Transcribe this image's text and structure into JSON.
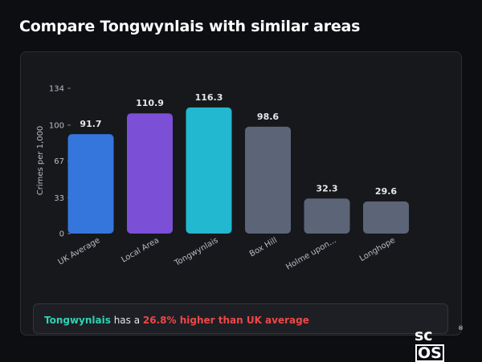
{
  "page": {
    "title": "Compare Tongwynlais with similar areas"
  },
  "summary": {
    "area": "Tongwynlais",
    "middle": " has a ",
    "difference": "26.8% higher than UK average"
  },
  "brand": {
    "prefix": "sc",
    "boxed": "OS",
    "registered": "®"
  },
  "chart_data": {
    "type": "bar",
    "title": "",
    "xlabel": "",
    "ylabel": "Crimes per 1,000",
    "yticks": [
      0,
      33,
      67,
      100,
      134
    ],
    "ylim": [
      0,
      134
    ],
    "categories": [
      "UK Average",
      "Local Area",
      "Tongwynlais",
      "Box Hill",
      "Holme upon...",
      "Longhope"
    ],
    "values": [
      91.7,
      110.9,
      116.3,
      98.6,
      32.3,
      29.6
    ],
    "value_labels": [
      "91.7",
      "110.9",
      "116.3",
      "98.6",
      "32.3",
      "29.6"
    ],
    "colors": [
      "#3476dc",
      "#7c4fd7",
      "#22b8cf",
      "#5b6577",
      "#5b6577",
      "#5b6577"
    ],
    "grid": false,
    "legend": "none"
  }
}
